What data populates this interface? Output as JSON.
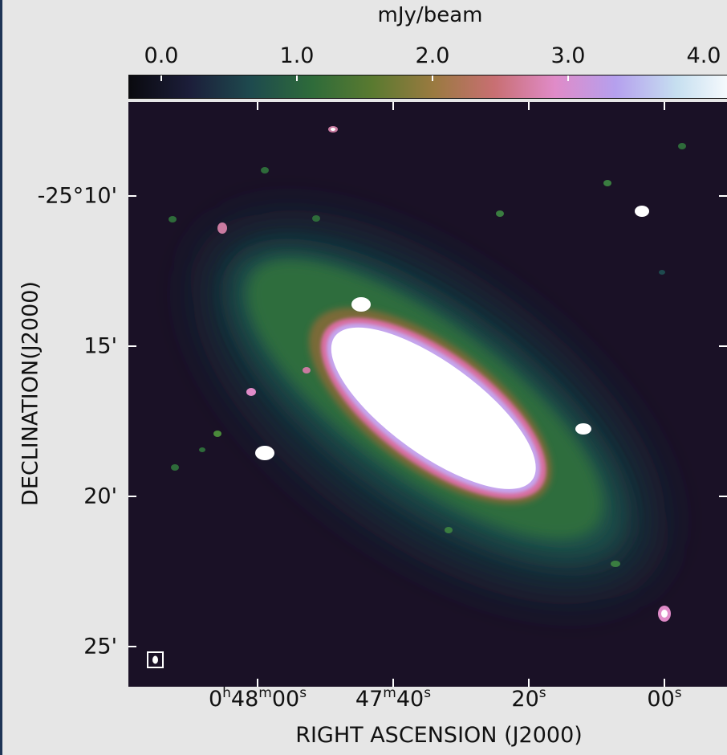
{
  "colorbar": {
    "title": "mJy/beam",
    "ticks": [
      "0.0",
      "1.0",
      "2.0",
      "3.0",
      "4.0"
    ],
    "tick_values": [
      0.0,
      1.0,
      2.0,
      3.0,
      4.0
    ],
    "range": [
      -0.2,
      4.2
    ],
    "colormap": "cubehelix-like",
    "stops": [
      "#0a0a0f",
      "#1c1e3a",
      "#1e4a4e",
      "#2e6b3a",
      "#5a7a30",
      "#9a7a40",
      "#c86f72",
      "#e08bc8",
      "#b5a0ee",
      "#c6dff0",
      "#ffffff"
    ]
  },
  "axes": {
    "xlabel": "RIGHT ASCENSION (J2000)",
    "ylabel": "DECLINATION(J2000)",
    "yticks": [
      "-25°10'",
      "15'",
      "20'",
      "25'"
    ],
    "xticks": [
      {
        "main": "0",
        "sup1": "h",
        "mid": "48",
        "sup2": "m",
        "tail": "00",
        "sup3": "s"
      },
      {
        "main": "47",
        "sup1": "m",
        "mid": "40",
        "sup2": "s",
        "tail": "",
        "sup3": ""
      },
      {
        "main": "20",
        "sup1": "s",
        "mid": "",
        "sup2": "",
        "tail": "",
        "sup3": ""
      },
      {
        "main": "00",
        "sup1": "s",
        "mid": "",
        "sup2": "",
        "tail": "",
        "sup3": ""
      }
    ]
  },
  "image": {
    "background": "#1a1126",
    "beam_marker": "beam-ellipse"
  }
}
